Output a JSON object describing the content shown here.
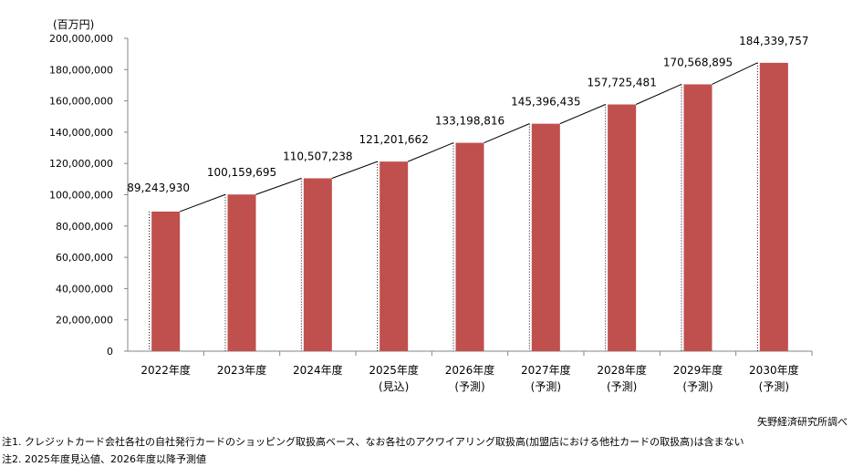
{
  "chart_data": {
    "type": "bar",
    "unit_label": "(百万円)",
    "categories": [
      [
        "2022年度",
        ""
      ],
      [
        "2023年度",
        ""
      ],
      [
        "2024年度",
        ""
      ],
      [
        "2025年度",
        "(見込)"
      ],
      [
        "2026年度",
        "(予測)"
      ],
      [
        "2027年度",
        "(予測)"
      ],
      [
        "2028年度",
        "(予測)"
      ],
      [
        "2029年度",
        "(予測)"
      ],
      [
        "2030年度",
        "(予測)"
      ]
    ],
    "values": [
      89243930,
      100159695,
      110507238,
      121201662,
      133198816,
      145396435,
      157725481,
      170568895,
      184339757
    ],
    "data_labels": [
      "89,243,930",
      "100,159,695",
      "110,507,238",
      "121,201,662",
      "133,198,816",
      "145,396,435",
      "157,725,481",
      "170,568,895",
      "184,339,757"
    ],
    "ylim": [
      0,
      200000000
    ],
    "yticks": [
      0,
      20000000,
      40000000,
      60000000,
      80000000,
      100000000,
      120000000,
      140000000,
      160000000,
      180000000,
      200000000
    ],
    "ytick_labels": [
      "0",
      "20,000,000",
      "40,000,000",
      "60,000,000",
      "80,000,000",
      "100,000,000",
      "120,000,000",
      "140,000,000",
      "160,000,000",
      "180,000,000",
      "200,000,000"
    ],
    "grid": false,
    "legend": "none",
    "bar_color": "#C0504D",
    "series_lines": true
  },
  "notes": {
    "source": "矢野経済研究所調べ",
    "note1": "注1. クレジットカード会社各社の自社発行カードのショッピング取扱高ベース、なお各社のアクワイアリング取扱高(加盟店における他社カードの取扱高)は含まない",
    "note2": "注2. 2025年度見込値、2026年度以降予測値"
  }
}
